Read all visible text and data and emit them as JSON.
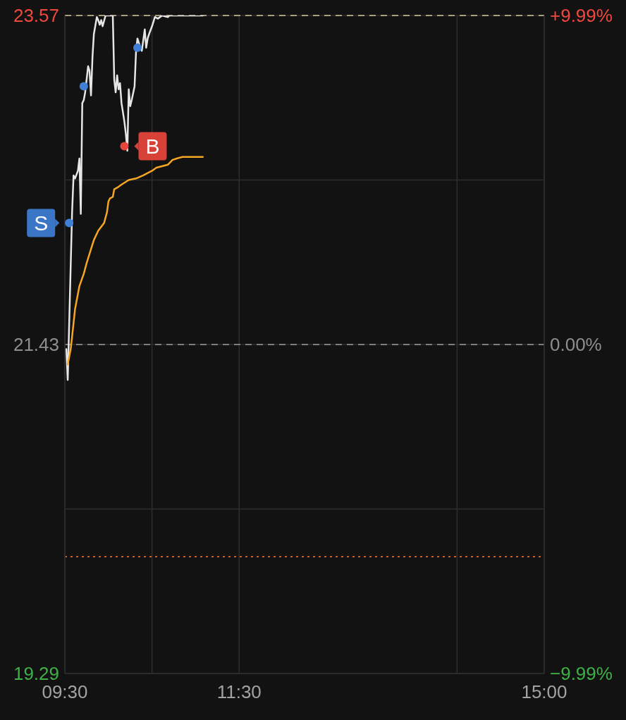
{
  "chart_data": {
    "type": "line",
    "xlim": [
      9.5,
      15
    ],
    "xticks": [
      {
        "value": 9.5,
        "label": "09:30"
      },
      {
        "value": 10.5,
        "label": null
      },
      {
        "value": 11.5,
        "label": "11:30"
      },
      {
        "value": 14,
        "label": null
      },
      {
        "value": 15,
        "label": "15:00"
      }
    ],
    "ylim": [
      19.29,
      23.57
    ],
    "yticks": [
      19.29,
      {
        "value": 20.36,
        "label": null
      },
      21.43,
      {
        "value": 22.5,
        "label": null
      },
      23.57
    ],
    "y2lim": [
      -9.99,
      9.99
    ],
    "y2ticks": [
      {
        "value": -9.99,
        "label": "−9.99%"
      },
      {
        "value": 0,
        "label": "0.00%"
      },
      {
        "value": 9.99,
        "label": "+9.99%"
      }
    ],
    "grid": true,
    "ref_lines": [
      {
        "axis": "y",
        "value": 23.57,
        "label": null,
        "color": "#d9c4a2",
        "line_style": "dashed"
      },
      {
        "axis": "y",
        "value": 21.43,
        "label": null,
        "color": "#9a9a9a",
        "line_style": "dashed"
      },
      {
        "axis": "y",
        "value": 20.05,
        "label": null,
        "color": "#e8803a",
        "line_style": "dotted"
      }
    ],
    "series": [
      {
        "color": "#e6e6e6",
        "x": [
          9.517,
          9.533,
          9.583,
          9.6,
          9.617,
          9.65,
          9.667,
          9.683,
          9.7,
          9.717,
          9.733,
          9.767,
          9.783,
          9.8,
          9.817,
          9.833,
          9.867,
          9.883,
          9.9,
          9.917,
          9.933,
          9.967,
          10.05,
          10.067,
          10.083,
          10.1,
          10.117,
          10.133,
          10.15,
          10.183,
          10.2,
          10.217,
          10.233,
          10.25,
          10.267,
          10.3,
          10.317,
          10.333,
          10.367,
          10.383,
          10.417,
          10.433,
          10.45,
          10.467,
          10.5,
          10.517,
          10.533,
          10.567,
          10.617,
          10.683,
          10.7,
          11.083
        ],
        "values": [
          21.4,
          21.2,
          22.29,
          22.53,
          22.51,
          22.56,
          22.64,
          22.28,
          23.0,
          23.02,
          23.07,
          23.24,
          23.21,
          23.05,
          23.3,
          23.45,
          23.56,
          23.54,
          23.51,
          23.54,
          23.5,
          23.57,
          23.57,
          23.15,
          23.07,
          23.18,
          23.09,
          23.13,
          23.0,
          22.88,
          22.8,
          22.69,
          23.09,
          22.98,
          23.02,
          23.11,
          23.34,
          23.42,
          23.36,
          23.34,
          23.48,
          23.36,
          23.42,
          23.45,
          23.5,
          23.53,
          23.56,
          23.55,
          23.57,
          23.56,
          23.57,
          23.57
        ]
      },
      {
        "color": "#f5a623",
        "x": [
          9.533,
          9.55,
          9.567,
          9.583,
          9.6,
          9.617,
          9.667,
          9.717,
          9.75,
          9.8,
          9.833,
          9.883,
          9.95,
          9.983,
          10,
          10.017,
          10.05,
          10.067,
          10.1,
          10.15,
          10.233,
          10.317,
          10.4,
          10.5,
          10.55,
          10.683,
          10.717,
          10.733,
          10.783,
          10.85,
          11.083
        ],
        "values": [
          21.3,
          21.35,
          21.4,
          21.48,
          21.57,
          21.66,
          21.81,
          21.89,
          21.96,
          22.05,
          22.11,
          22.17,
          22.22,
          22.29,
          22.36,
          22.38,
          22.39,
          22.44,
          22.45,
          22.47,
          22.5,
          22.51,
          22.53,
          22.56,
          22.58,
          22.6,
          22.62,
          22.63,
          22.64,
          22.65,
          22.65
        ]
      },
      {
        "type": "scatter",
        "color": "#3f7fd6",
        "marker": "circle",
        "x": [
          9.55,
          9.717,
          10.333
        ],
        "values": [
          22.22,
          23.11,
          23.36
        ]
      },
      {
        "type": "scatter",
        "color": "#e8453c",
        "marker": "circle",
        "x": [
          10.183
        ],
        "values": [
          22.72
        ]
      }
    ],
    "annotations": [
      {
        "text": "S",
        "x": 9.55,
        "y": 22.22
      },
      {
        "text": "B",
        "x": 10.183,
        "y": 22.72
      }
    ]
  }
}
